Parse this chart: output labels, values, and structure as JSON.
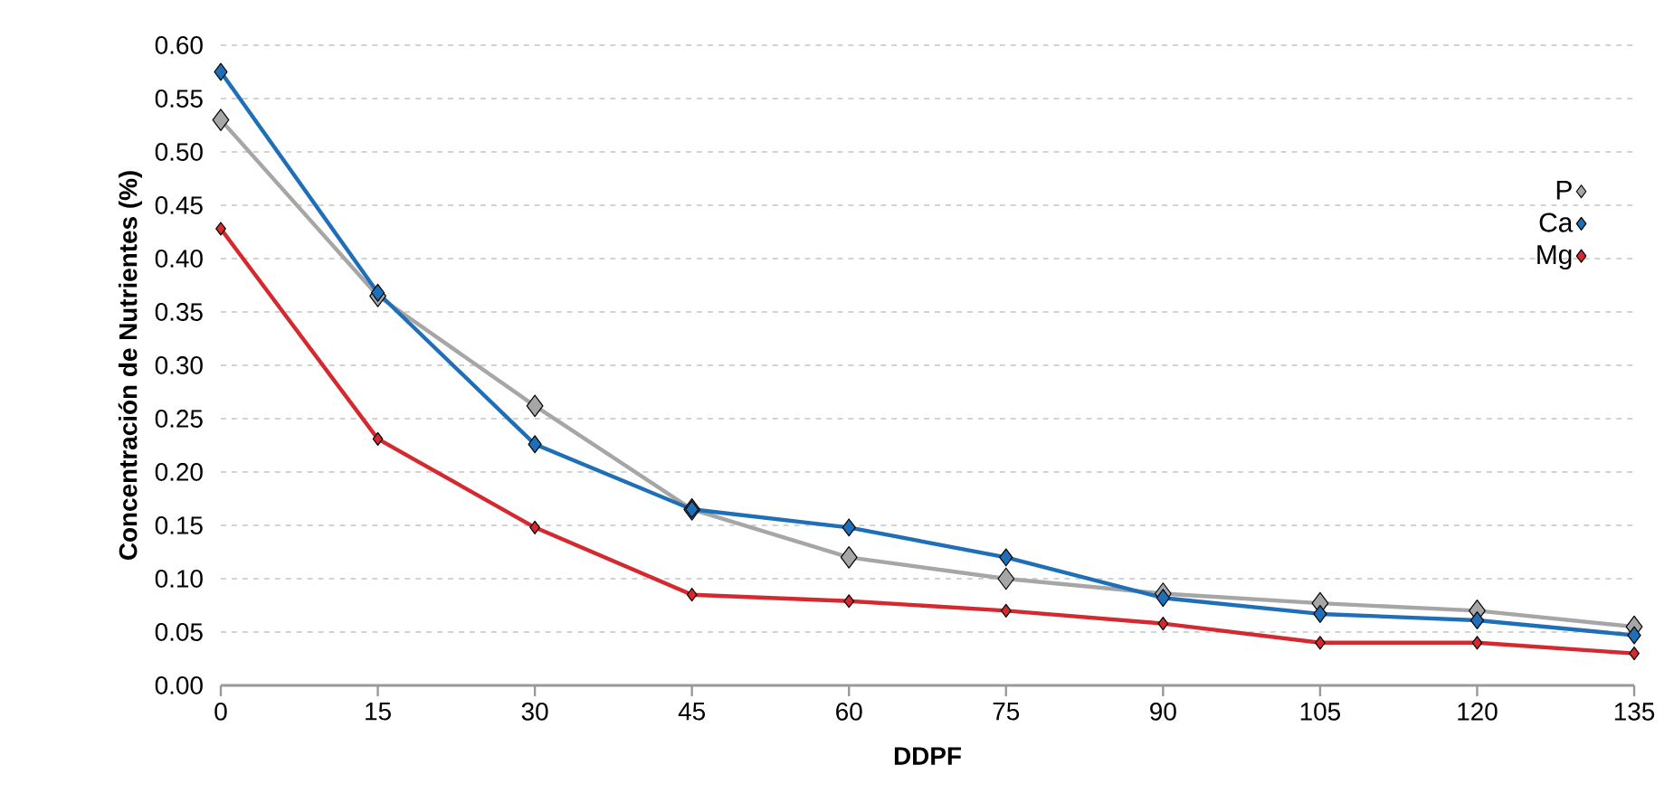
{
  "chart_data": {
    "type": "line",
    "xlabel": "DDPF",
    "ylabel": "Concentración de Nutrientes (%)",
    "x": [
      0,
      15,
      30,
      45,
      60,
      75,
      90,
      105,
      120,
      135
    ],
    "series": [
      {
        "name": "P",
        "color": "#a6a6a6",
        "values": [
          0.53,
          0.365,
          0.262,
          0.165,
          0.12,
          0.1,
          0.086,
          0.077,
          0.07,
          0.055
        ]
      },
      {
        "name": "Ca",
        "color": "#1f6fb8",
        "values": [
          0.575,
          0.368,
          0.226,
          0.165,
          0.148,
          0.12,
          0.082,
          0.067,
          0.061,
          0.047
        ]
      },
      {
        "name": "Mg",
        "color": "#d42a2f",
        "values": [
          0.428,
          0.231,
          0.148,
          0.085,
          0.079,
          0.07,
          0.058,
          0.04,
          0.04,
          0.03
        ]
      }
    ],
    "xlim": [
      0,
      135
    ],
    "xticks": [
      0,
      15,
      30,
      45,
      60,
      75,
      90,
      105,
      120,
      135
    ],
    "ylim": [
      0,
      0.6
    ],
    "yticks": [
      {
        "value": 0,
        "label": "0.00"
      },
      {
        "value": 0.05,
        "label": "0.05"
      },
      {
        "value": 0.1,
        "label": "0.10"
      },
      {
        "value": 0.15,
        "label": "0.15"
      },
      {
        "value": 0.2,
        "label": "0.20"
      },
      {
        "value": 0.25,
        "label": "0.25"
      },
      {
        "value": 0.3,
        "label": "0.30"
      },
      {
        "value": 0.35,
        "label": "0.35"
      },
      {
        "value": 0.4,
        "label": "0.40"
      },
      {
        "value": 0.45,
        "label": "0.45"
      },
      {
        "value": 0.5,
        "label": "0.50"
      },
      {
        "value": 0.55,
        "label": "0.55"
      },
      {
        "value": 0.6,
        "label": "0.60"
      }
    ],
    "grid": "y",
    "legend": "top right",
    "marker": "diamond",
    "line_style": "solid"
  }
}
